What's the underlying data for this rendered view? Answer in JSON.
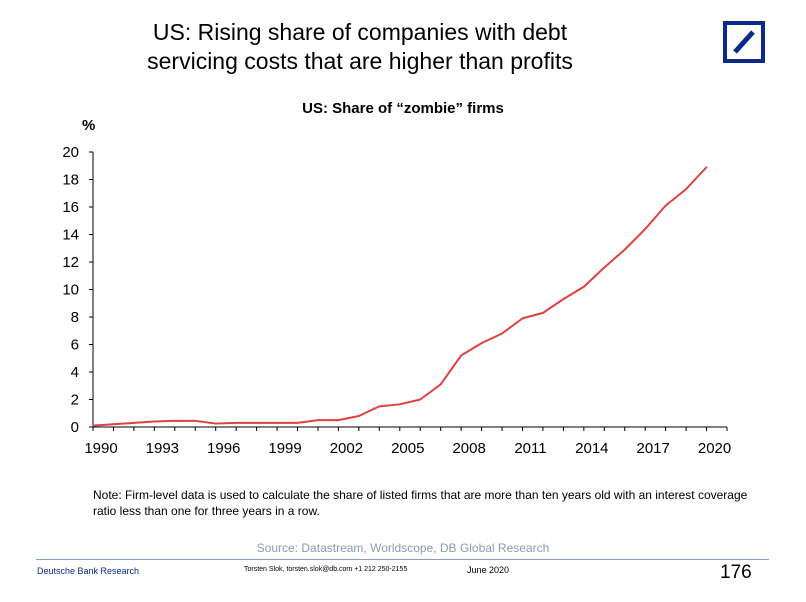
{
  "slide": {
    "title_line1": "US: Rising share of companies with debt",
    "title_line2": "servicing costs that are higher than profits"
  },
  "chart_data": {
    "type": "line",
    "title": "US: Share of “zombie” firms",
    "ylabel": "%",
    "xlabel": "",
    "ylim": [
      0,
      20
    ],
    "yticks": [
      0,
      2,
      4,
      6,
      8,
      10,
      12,
      14,
      16,
      18,
      20
    ],
    "xlim": [
      1990,
      2021
    ],
    "xticks": [
      1990,
      1993,
      1996,
      1999,
      2002,
      2005,
      2008,
      2011,
      2014,
      2017,
      2020
    ],
    "grid": false,
    "series": [
      {
        "color": "#e04040",
        "x": [
          1990,
          1991,
          1992,
          1993,
          1994,
          1995,
          1996,
          1997,
          1998,
          1999,
          2000,
          2001,
          2002,
          2003,
          2004,
          2005,
          2006,
          2007,
          2008,
          2009,
          2010,
          2011,
          2012,
          2013,
          2014,
          2015,
          2016,
          2017,
          2018,
          2019,
          2020
        ],
        "y": [
          0.1,
          0.2,
          0.3,
          0.4,
          0.45,
          0.45,
          0.25,
          0.3,
          0.3,
          0.3,
          0.3,
          0.5,
          0.5,
          0.8,
          1.5,
          1.65,
          2.0,
          3.1,
          5.2,
          6.1,
          6.8,
          7.9,
          8.3,
          9.3,
          10.2,
          11.6,
          12.9,
          14.4,
          16.1,
          17.3,
          18.9
        ]
      }
    ]
  },
  "note": "Note: Firm-level data is used to calculate the share of listed firms that are more than ten years old with an interest coverage ratio less than one for three years in a row.",
  "source": "Source: Datastream, Worldscope, DB Global Research",
  "footer": {
    "brand": "Deutsche Bank Research",
    "contact": "Torsten Slok, torsten.slok@db.com  +1 212 250-2155",
    "date": "June 2020",
    "page_number": "176"
  },
  "colors": {
    "brand_blue": "#0a2a8a",
    "line_red": "#e04040",
    "source_gray": "#8a9ab8"
  }
}
